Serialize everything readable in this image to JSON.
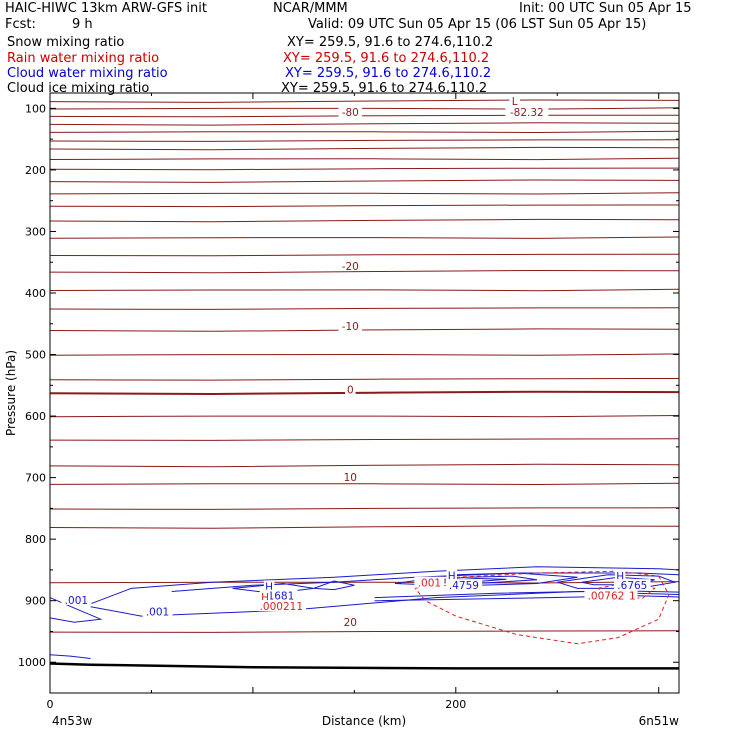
{
  "header": {
    "title": "HAIC-HIWC 13km ARW-GFS init",
    "org": "NCAR/MMM",
    "init": "Init: 00 UTC Sun 05 Apr 15",
    "fcst_label": "Fcst:",
    "fcst_value": "9 h",
    "valid": "Valid: 09 UTC Sun 05 Apr 15 (06 LST Sun 05 Apr 15)"
  },
  "fields": [
    {
      "name": "Snow mixing ratio",
      "xy": "XY= 259.5, 91.6 to 274.6,110.2",
      "color": "#000000"
    },
    {
      "name": "Rain water mixing ratio",
      "xy": "XY= 259.5, 91.6 to 274.6,110.2",
      "color": "#cc0000"
    },
    {
      "name": "Cloud water mixing ratio",
      "xy": "XY= 259.5, 91.6 to 274.6,110.2",
      "color": "#0000cc"
    },
    {
      "name": "Cloud ice mixing ratio",
      "xy": "XY= 259.5, 91.6 to 274.6,110.2",
      "color": "#000000"
    }
  ],
  "colors": {
    "temperature": "#8b1a1a",
    "rain": "#dd2222",
    "cloud_water": "#1a1acc",
    "terrain": "#000000",
    "frame": "#000000"
  },
  "chart_data": {
    "type": "cross-section",
    "ylabel": "Pressure (hPa)",
    "xlabel": "Distance (km)",
    "x_endpoints": {
      "left": "4n53w",
      "right": "6n51w"
    },
    "xlim": [
      0,
      310
    ],
    "ylim": [
      1050,
      75
    ],
    "y_ticks": [
      100,
      200,
      300,
      400,
      500,
      600,
      700,
      800,
      900,
      1000
    ],
    "x_ticks": [
      0,
      200
    ],
    "x_minor_step": 50,
    "y_minor_step": 50,
    "temperature_contour_labels": [
      {
        "text": "-80",
        "x": 148,
        "p": 109
      },
      {
        "text": "-82.32",
        "x": 235,
        "p": 109
      },
      {
        "text": "L",
        "x": 229,
        "p": 91
      },
      {
        "text": "-20",
        "x": 148,
        "p": 359
      },
      {
        "text": "-10",
        "x": 148,
        "p": 457
      },
      {
        "text": "0",
        "x": 148,
        "p": 560
      },
      {
        "text": "10",
        "x": 148,
        "p": 702
      },
      {
        "text": "20",
        "x": 148,
        "p": 938
      }
    ],
    "temperature_levels_p": [
      88,
      100,
      112,
      125,
      138,
      152,
      165,
      182,
      198,
      218,
      238,
      258,
      282,
      310,
      338,
      365,
      395,
      425,
      460,
      500,
      540,
      562,
      600,
      638,
      680,
      710,
      750,
      780,
      870,
      950
    ],
    "cloud_water_labels": [
      {
        "text": ".001",
        "x": 13,
        "p": 902
      },
      {
        "text": ".001",
        "x": 53,
        "p": 921
      },
      {
        "text": "H",
        "x": 108,
        "p": 880
      },
      {
        "text": ".1681",
        "x": 113,
        "p": 895
      },
      {
        "text": "H",
        "x": 198,
        "p": 862
      },
      {
        "text": ".4759",
        "x": 204,
        "p": 878
      },
      {
        "text": "H",
        "x": 281,
        "p": 863
      },
      {
        "text": ".6765",
        "x": 287,
        "p": 878
      }
    ],
    "rain_labels": [
      {
        "text": "H",
        "x": 106,
        "p": 897
      },
      {
        "text": ".000211",
        "x": 114,
        "p": 912
      },
      {
        "text": ".001",
        "x": 187,
        "p": 874
      },
      {
        "text": ".00762",
        "x": 274,
        "p": 895
      },
      {
        "text": "1",
        "x": 287,
        "p": 895
      }
    ]
  }
}
